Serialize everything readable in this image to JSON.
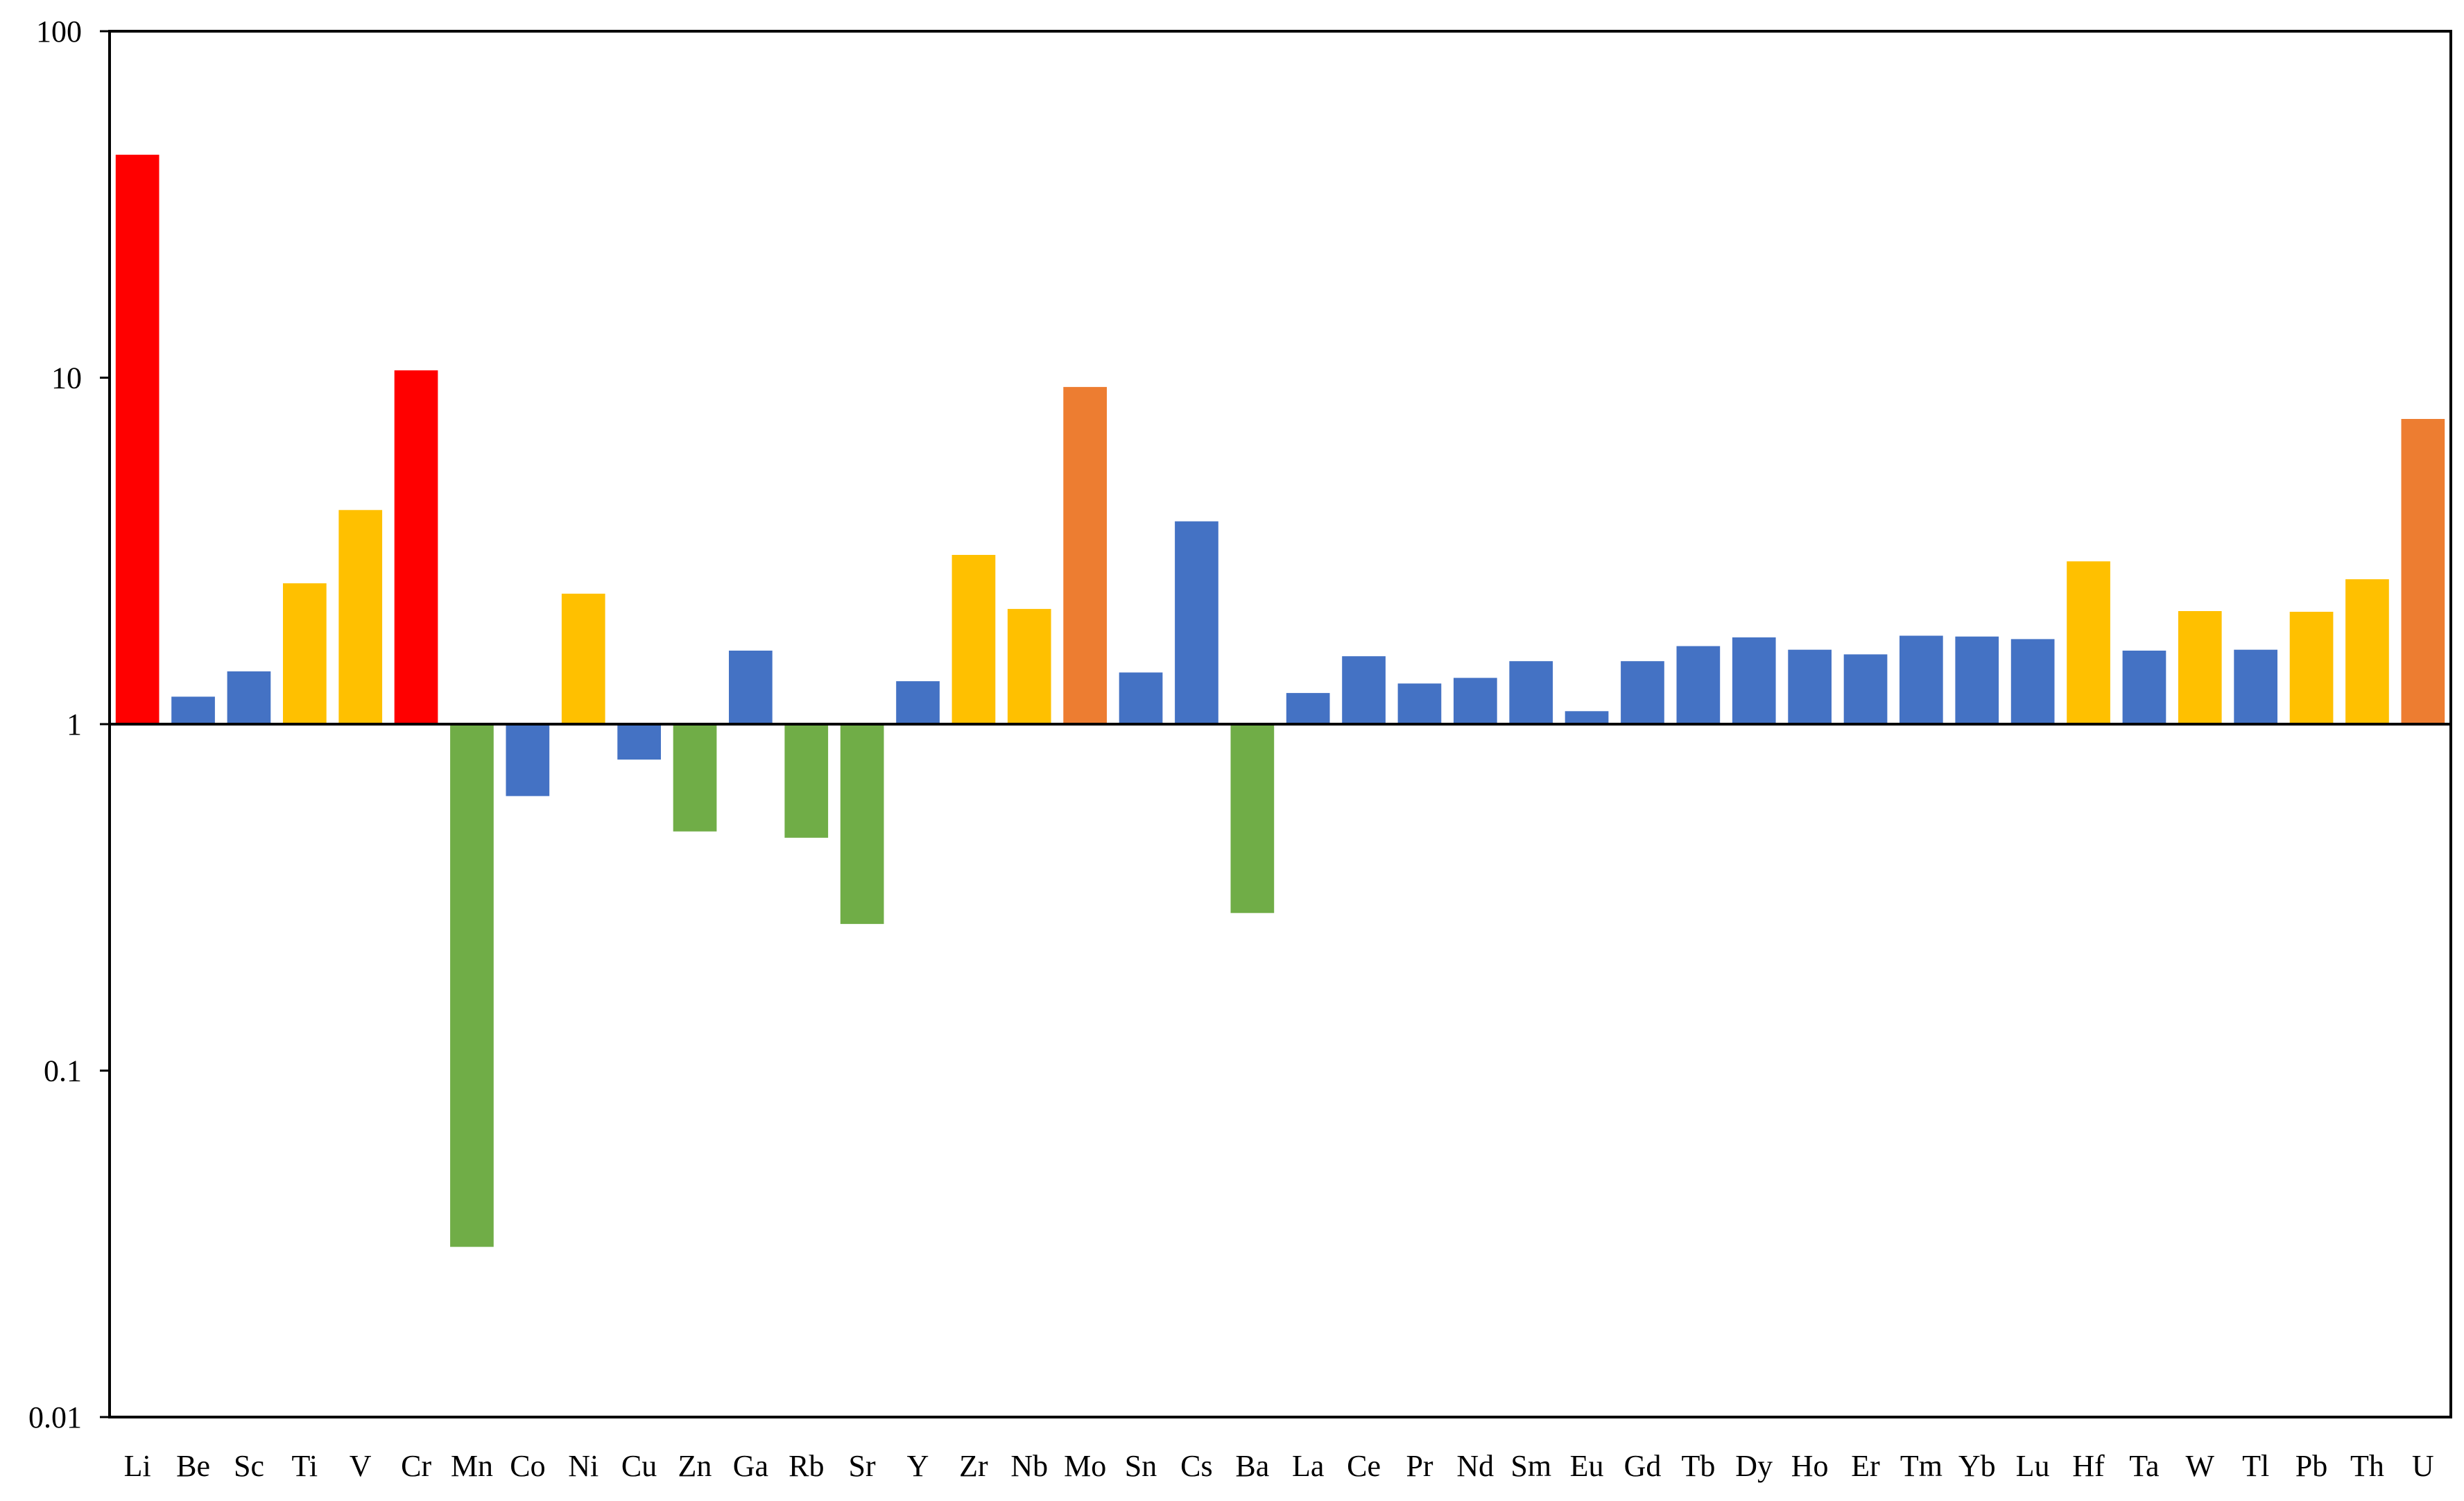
{
  "chart_data": {
    "type": "bar",
    "scale": "log",
    "baseline": 1,
    "ylim": [
      0.01,
      100
    ],
    "ytick_labels": [
      "0.01",
      "0.1",
      "1",
      "10",
      "100"
    ],
    "ytick_values": [
      0.01,
      0.1,
      1,
      10,
      100
    ],
    "grid": false,
    "title": "",
    "xlabel": "",
    "ylabel": "",
    "colors": {
      "red": "#ff0000",
      "orange": "#ed7d31",
      "yellow": "#ffc000",
      "blue": "#4472c4",
      "green": "#70ad47"
    },
    "categories": [
      "Li",
      "Be",
      "Sc",
      "Ti",
      "V",
      "Cr",
      "Mn",
      "Co",
      "Ni",
      "Cu",
      "Zn",
      "Ga",
      "Rb",
      "Sr",
      "Y",
      "Zr",
      "Nb",
      "Mo",
      "Sn",
      "Cs",
      "Ba",
      "La",
      "Ce",
      "Pr",
      "Nd",
      "Sm",
      "Eu",
      "Gd",
      "Tb",
      "Dy",
      "Ho",
      "Er",
      "Tm",
      "Yb",
      "Lu",
      "Hf",
      "Ta",
      "W",
      "Tl",
      "Pb",
      "Th",
      "U"
    ],
    "values": [
      44.0,
      1.2,
      1.42,
      2.55,
      4.15,
      10.5,
      0.031,
      0.62,
      2.38,
      0.79,
      0.49,
      1.63,
      0.47,
      0.265,
      1.33,
      3.08,
      2.15,
      9.4,
      1.41,
      3.85,
      0.285,
      1.23,
      1.57,
      1.31,
      1.36,
      1.52,
      1.09,
      1.52,
      1.68,
      1.78,
      1.64,
      1.59,
      1.8,
      1.79,
      1.76,
      2.95,
      1.63,
      2.12,
      1.64,
      2.11,
      2.62,
      7.6
    ],
    "bar_colors": [
      "red",
      "blue",
      "blue",
      "yellow",
      "yellow",
      "red",
      "green",
      "blue",
      "yellow",
      "blue",
      "green",
      "blue",
      "green",
      "green",
      "blue",
      "yellow",
      "yellow",
      "orange",
      "blue",
      "blue",
      "green",
      "blue",
      "blue",
      "blue",
      "blue",
      "blue",
      "blue",
      "blue",
      "blue",
      "blue",
      "blue",
      "blue",
      "blue",
      "blue",
      "blue",
      "yellow",
      "blue",
      "yellow",
      "blue",
      "yellow",
      "yellow",
      "orange"
    ]
  }
}
